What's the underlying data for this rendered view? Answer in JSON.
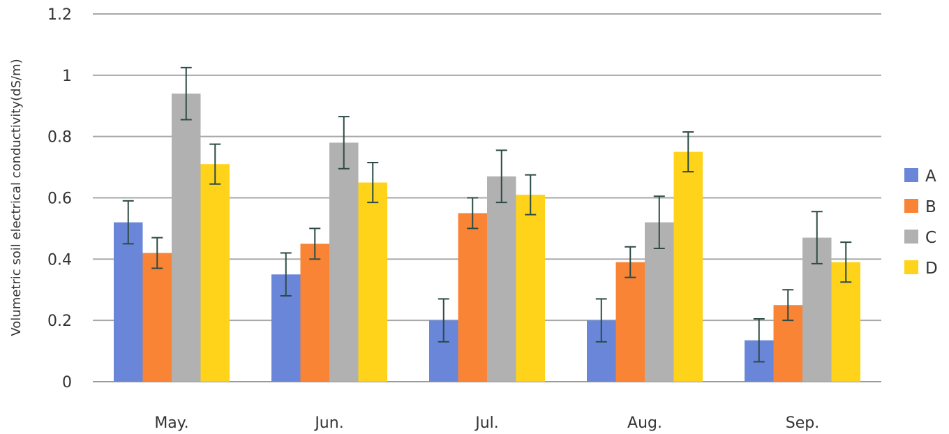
{
  "chart_data": {
    "type": "bar",
    "ylabel": "Volumetric soil electrical conductivity(dS/m)",
    "xlabel": "",
    "ylim": [
      0,
      1.2
    ],
    "yticks": [
      "0",
      "0.2",
      "0.4",
      "0.6",
      "0.8",
      "1",
      "1.2"
    ],
    "grid": true,
    "legend_position": "right",
    "categories": [
      "May.",
      "Jun.",
      "Jul.",
      "Aug.",
      "Sep."
    ],
    "series": [
      {
        "name": "A",
        "color": "#6a86d8",
        "values": [
          0.52,
          0.35,
          0.2,
          0.2,
          0.135
        ],
        "errors": [
          0.07,
          0.07,
          0.07,
          0.07,
          0.07
        ]
      },
      {
        "name": "B",
        "color": "#f98436",
        "values": [
          0.42,
          0.45,
          0.55,
          0.39,
          0.25
        ],
        "errors": [
          0.05,
          0.05,
          0.05,
          0.05,
          0.05
        ]
      },
      {
        "name": "C",
        "color": "#b1b1b1",
        "values": [
          0.94,
          0.78,
          0.67,
          0.52,
          0.47
        ],
        "errors": [
          0.085,
          0.085,
          0.085,
          0.085,
          0.085
        ]
      },
      {
        "name": "D",
        "color": "#ffd31a",
        "values": [
          0.71,
          0.65,
          0.61,
          0.75,
          0.39
        ],
        "errors": [
          0.065,
          0.065,
          0.065,
          0.065,
          0.065
        ]
      }
    ]
  }
}
